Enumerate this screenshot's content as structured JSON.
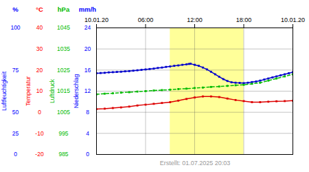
{
  "chart_data": {
    "type": "line",
    "subtitle": "Erstellt: 01.07.2025 20:03",
    "xlim": [
      0,
      24
    ],
    "xticks": [
      {
        "value": 0,
        "label": "10.01.20"
      },
      {
        "value": 6,
        "label": "06:00"
      },
      {
        "value": 12,
        "label": "12:00"
      },
      {
        "value": 18,
        "label": "18:00"
      },
      {
        "value": 24,
        "label": "10.01.20"
      }
    ],
    "ylim": [
      985,
      1045
    ],
    "yticks": [
      985,
      995,
      1005,
      1015,
      1025,
      1035,
      1045
    ],
    "grid": true,
    "highlight": {
      "x": [
        9.0,
        18.0
      ],
      "color": "#ffff99"
    },
    "axes": [
      {
        "unit": "%",
        "label": "Luftfeuchtigkeit",
        "color": "#0000ff",
        "ticks": [
          0,
          25,
          50,
          75,
          100
        ],
        "at": [
          985,
          995,
          1005,
          1025,
          1045
        ]
      },
      {
        "unit": "°C",
        "label": "Temperatur",
        "color": "#ff0000",
        "ticks": [
          -20,
          -10,
          0,
          10,
          20,
          30,
          40
        ],
        "at": [
          985,
          995,
          1005,
          1015,
          1025,
          1035,
          1045
        ]
      },
      {
        "unit": "hPa",
        "label": "Luftdruck",
        "color": "#00bb00",
        "ticks": [
          985,
          995,
          1005,
          1015,
          1025,
          1035,
          1045
        ]
      },
      {
        "unit": "mm/h",
        "label": "Niederschlag",
        "color": "#0000ff",
        "ticks": [
          0,
          4,
          8,
          12,
          16,
          20,
          24
        ],
        "at": [
          985,
          995,
          1005,
          1015,
          1025,
          1035,
          1045
        ]
      }
    ],
    "series": [
      {
        "color": "#0000cc",
        "line_style": "solid",
        "marker": "square",
        "x": [
          0,
          0.5,
          1,
          1.5,
          2,
          2.5,
          3,
          3.5,
          4,
          4.5,
          5,
          5.5,
          6,
          6.5,
          7,
          7.5,
          8,
          8.5,
          9,
          9.5,
          10,
          10.5,
          11,
          11.3,
          11.5,
          12,
          12.5,
          13,
          13.5,
          14,
          14.5,
          15,
          15.5,
          16,
          16.5,
          17,
          17.5,
          18,
          18.5,
          19,
          19.5,
          20,
          20.5,
          21,
          21.5,
          22,
          22.5,
          23,
          23.5,
          24
        ],
        "values": [
          1023.5,
          1023.6,
          1023.7,
          1023.9,
          1024.0,
          1024.1,
          1024.2,
          1024.4,
          1024.5,
          1024.7,
          1024.9,
          1025.1,
          1025.3,
          1025.5,
          1025.7,
          1026.0,
          1026.2,
          1026.5,
          1026.7,
          1027.0,
          1027.2,
          1027.5,
          1027.7,
          1027.9,
          1028.0,
          1027.5,
          1027.0,
          1026.2,
          1025.3,
          1024.2,
          1023.0,
          1021.8,
          1020.7,
          1019.8,
          1019.2,
          1019.0,
          1018.9,
          1018.8,
          1019.0,
          1019.3,
          1019.6,
          1020.0,
          1020.5,
          1021.0,
          1021.5,
          1022.0,
          1022.5,
          1023.0,
          1023.5,
          1024.0
        ]
      },
      {
        "color": "#00bb00",
        "line_style": "dashed",
        "marker": "square",
        "x": [
          0,
          1,
          2,
          3,
          4,
          5,
          6,
          7,
          8,
          9,
          10,
          11,
          12,
          13,
          14,
          15,
          16,
          17,
          18,
          19,
          20,
          21,
          22,
          23,
          24
        ],
        "values": [
          1013.5,
          1013.8,
          1014.0,
          1014.3,
          1014.5,
          1014.8,
          1015.0,
          1015.3,
          1015.5,
          1015.7,
          1016.0,
          1016.2,
          1016.5,
          1016.7,
          1017.0,
          1017.2,
          1017.5,
          1017.8,
          1018.0,
          1018.5,
          1019.0,
          1020.0,
          1021.0,
          1022.0,
          1023.0
        ]
      },
      {
        "color": "#dd0000",
        "line_style": "solid",
        "marker": "square",
        "x": [
          0,
          1,
          2,
          3,
          4,
          5,
          6,
          7,
          8,
          9,
          10,
          11,
          12,
          13,
          14,
          15,
          16,
          17,
          18,
          19,
          20,
          21,
          22,
          23,
          24
        ],
        "values": [
          1006.5,
          1006.7,
          1007.0,
          1007.3,
          1007.7,
          1008.2,
          1008.6,
          1009.0,
          1009.4,
          1009.8,
          1010.5,
          1011.3,
          1012.0,
          1012.5,
          1012.5,
          1012.2,
          1011.5,
          1010.8,
          1010.3,
          1009.8,
          1009.8,
          1010.0,
          1010.2,
          1010.3,
          1010.5
        ]
      }
    ]
  }
}
